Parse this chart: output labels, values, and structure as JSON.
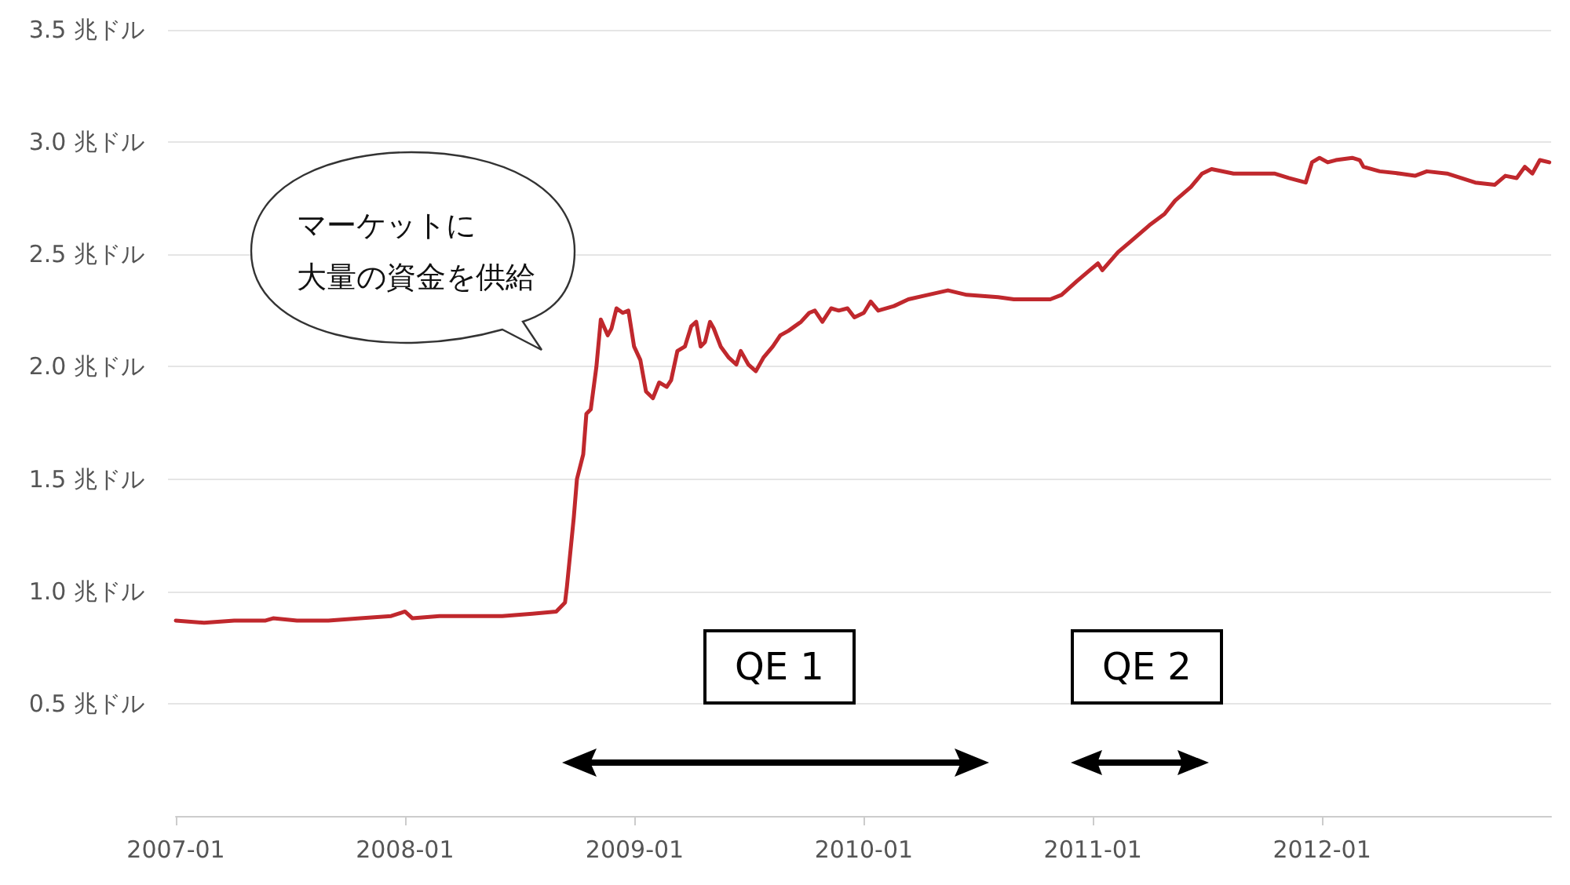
{
  "chart_data": {
    "type": "line",
    "x": [
      "2007-01-01",
      "2007-02-15",
      "2007-04-04",
      "2007-05-24",
      "2007-06-05",
      "2007-07-13",
      "2007-09-01",
      "2007-10-22",
      "2007-12-10",
      "2008-01-01",
      "2008-01-13",
      "2008-02-25",
      "2008-04-13",
      "2008-06-04",
      "2008-07-22",
      "2008-08-29",
      "2008-09-12",
      "2008-09-15",
      "2008-09-26",
      "2008-10-01",
      "2008-10-11",
      "2008-10-16",
      "2008-10-23",
      "2008-11-01",
      "2008-11-08",
      "2008-11-19",
      "2008-11-25",
      "2008-12-03",
      "2008-12-13",
      "2008-12-22",
      "2008-12-31",
      "2009-01-10",
      "2009-01-19",
      "2009-01-30",
      "2009-02-09",
      "2009-02-21",
      "2009-02-28",
      "2009-03-10",
      "2009-03-22",
      "2009-04-01",
      "2009-04-09",
      "2009-04-16",
      "2009-04-23",
      "2009-05-01",
      "2009-05-07",
      "2009-05-18",
      "2009-05-31",
      "2009-06-12",
      "2009-06-19",
      "2009-07-01",
      "2009-07-13",
      "2009-07-25",
      "2009-08-09",
      "2009-08-21",
      "2009-09-03",
      "2009-09-13",
      "2009-09-23",
      "2009-10-06",
      "2009-10-15",
      "2009-10-27",
      "2009-11-10",
      "2009-11-22",
      "2009-12-06",
      "2009-12-17",
      "2010-01-01",
      "2010-01-12",
      "2010-01-24",
      "2010-02-18",
      "2010-03-13",
      "2010-04-13",
      "2010-05-15",
      "2010-06-14",
      "2010-08-03",
      "2010-08-28",
      "2010-10-25",
      "2010-11-12",
      "2010-12-06",
      "2010-12-27",
      "2011-01-09",
      "2011-01-16",
      "2011-02-10",
      "2011-03-03",
      "2011-04-01",
      "2011-04-25",
      "2011-05-12",
      "2011-06-06",
      "2011-06-24",
      "2011-07-09",
      "2011-08-13",
      "2011-09-15",
      "2011-10-17",
      "2011-11-09",
      "2011-12-06",
      "2011-12-16",
      "2011-12-28",
      "2012-01-10",
      "2012-01-23",
      "2012-02-18",
      "2012-03-01",
      "2012-03-07",
      "2012-04-02",
      "2012-05-04",
      "2012-05-28",
      "2012-06-16",
      "2012-07-18",
      "2012-09-01",
      "2012-10-02",
      "2012-10-19",
      "2012-11-06",
      "2012-11-19",
      "2012-12-01",
      "2012-12-13",
      "2012-12-28"
    ],
    "series": [
      {
        "color": "#c0282d",
        "values": [
          0.87,
          0.86,
          0.87,
          0.87,
          0.88,
          0.87,
          0.87,
          0.88,
          0.89,
          0.91,
          0.88,
          0.89,
          0.89,
          0.89,
          0.9,
          0.91,
          0.95,
          1.02,
          1.33,
          1.5,
          1.61,
          1.79,
          1.81,
          2.0,
          2.21,
          2.14,
          2.17,
          2.26,
          2.24,
          2.25,
          2.09,
          2.03,
          1.89,
          1.86,
          1.93,
          1.91,
          1.94,
          2.07,
          2.09,
          2.18,
          2.2,
          2.09,
          2.11,
          2.2,
          2.17,
          2.09,
          2.04,
          2.01,
          2.07,
          2.01,
          1.98,
          2.04,
          2.09,
          2.14,
          2.16,
          2.18,
          2.2,
          2.24,
          2.25,
          2.2,
          2.26,
          2.25,
          2.26,
          2.22,
          2.24,
          2.29,
          2.25,
          2.27,
          2.3,
          2.32,
          2.34,
          2.32,
          2.31,
          2.3,
          2.3,
          2.32,
          2.38,
          2.43,
          2.46,
          2.43,
          2.51,
          2.56,
          2.63,
          2.68,
          2.74,
          2.8,
          2.86,
          2.88,
          2.86,
          2.86,
          2.86,
          2.84,
          2.82,
          2.91,
          2.93,
          2.91,
          2.92,
          2.93,
          2.92,
          2.89,
          2.87,
          2.86,
          2.85,
          2.87,
          2.86,
          2.82,
          2.81,
          2.85,
          2.84,
          2.89,
          2.86,
          2.92,
          2.91
        ]
      }
    ],
    "xlim": [
      "2007-01-01",
      "2012-12-31"
    ],
    "xticks": [
      "2007-01",
      "2008-01",
      "2009-01",
      "2010-01",
      "2011-01",
      "2012-01"
    ],
    "ylim": [
      0,
      3.5
    ],
    "yticks": [
      {
        "value": 0.5,
        "label": "0.5 兆ドル"
      },
      {
        "value": 1.0,
        "label": "1.0 兆ドル"
      },
      {
        "value": 1.5,
        "label": "1.5 兆ドル"
      },
      {
        "value": 2.0,
        "label": "2.0 兆ドル"
      },
      {
        "value": 2.5,
        "label": "2.5 兆ドル"
      },
      {
        "value": 3.0,
        "label": "3.0 兆ドル"
      },
      {
        "value": 3.5,
        "label": "3.5 兆ドル"
      }
    ],
    "grid": "y",
    "marker": "none",
    "line_style": "solid",
    "annotations": [
      "マーケットに",
      "大量の資金を供給",
      "QE 1",
      "QE 2"
    ]
  }
}
